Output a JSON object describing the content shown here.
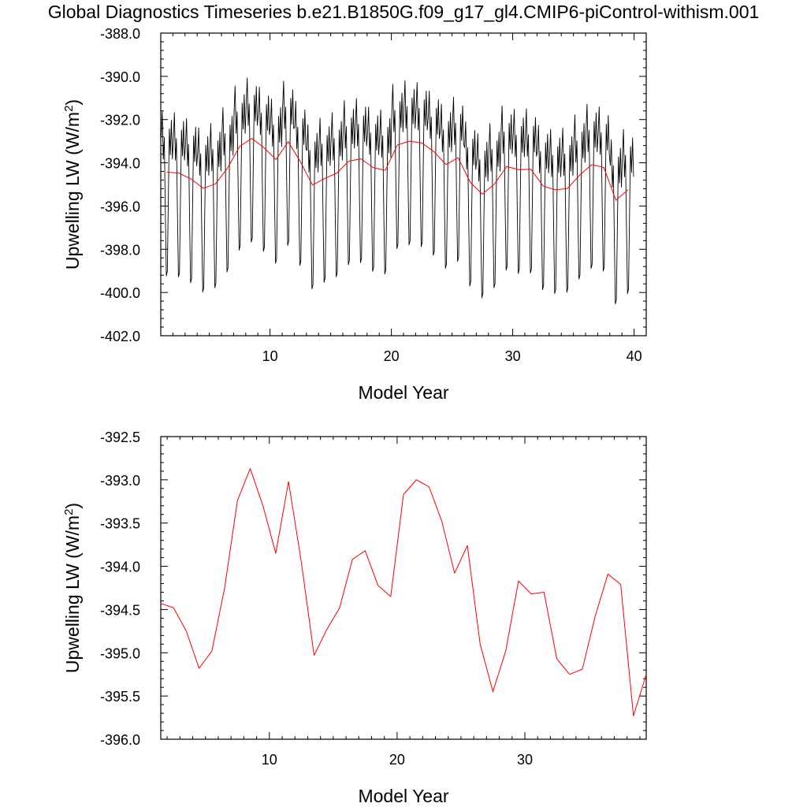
{
  "title": "Global Diagnostics Timeseries b.e21.B1850G.f09_g17_gl4.CMIP6-piControl-withism.001",
  "colors": {
    "monthly": "#000000",
    "annual": "#ff0000"
  },
  "chart_data": [
    {
      "type": "line",
      "xlabel": "Model Year",
      "ylabel": "Upwelling LW (W/m2)",
      "xlim": [
        1,
        41
      ],
      "ylim": [
        -402.0,
        -388.0
      ],
      "xticks": [
        10,
        20,
        30,
        40
      ],
      "yticks": [
        -402.0,
        -400.0,
        -398.0,
        -396.0,
        -394.0,
        -392.0,
        -390.0,
        -388.0
      ],
      "ytick_labels": [
        "-402.0",
        "-400.0",
        "-398.0",
        "-396.0",
        "-394.0",
        "-392.0",
        "-390.0",
        "-388.0"
      ],
      "grid": false,
      "series": [
        {
          "style": "monthly",
          "x_start": 1.04,
          "x_step": 0.0833333,
          "monthly_cycle": [
            1.6,
            2.8,
            0.6,
            1.6,
            -1.8,
            -4.8,
            -4.6,
            -1.2,
            2.0,
            0.8,
            2.4,
            0.6
          ],
          "annual_values": [
            -394.43,
            -394.48,
            -394.75,
            -395.18,
            -394.98,
            -394.25,
            -393.24,
            -392.87,
            -393.3,
            -393.85,
            -393.02,
            -393.95,
            -395.03,
            -394.73,
            -394.48,
            -393.92,
            -393.82,
            -394.22,
            -394.35,
            -393.17,
            -393.0,
            -393.08,
            -393.48,
            -394.08,
            -393.76,
            -394.9,
            -395.45,
            -394.98,
            -394.17,
            -394.32,
            -394.3,
            -395.07,
            -395.25,
            -395.19,
            -394.58,
            -394.09,
            -394.21,
            -395.73,
            -395.25
          ]
        },
        {
          "style": "annual",
          "x": [
            1.5,
            2.5,
            3.5,
            4.5,
            5.5,
            6.5,
            7.5,
            8.5,
            9.5,
            10.5,
            11.5,
            12.5,
            13.5,
            14.5,
            15.5,
            16.5,
            17.5,
            18.5,
            19.5,
            20.5,
            21.5,
            22.5,
            23.5,
            24.5,
            25.5,
            26.5,
            27.5,
            28.5,
            29.5,
            30.5,
            31.5,
            32.5,
            33.5,
            34.5,
            35.5,
            36.5,
            37.5,
            38.5,
            39.5
          ],
          "values": [
            -394.43,
            -394.48,
            -394.75,
            -395.18,
            -394.98,
            -394.25,
            -393.24,
            -392.87,
            -393.3,
            -393.85,
            -393.02,
            -393.95,
            -395.03,
            -394.73,
            -394.48,
            -393.92,
            -393.82,
            -394.22,
            -394.35,
            -393.17,
            -393.0,
            -393.08,
            -393.48,
            -394.08,
            -393.76,
            -394.9,
            -395.45,
            -394.98,
            -394.17,
            -394.32,
            -394.3,
            -395.07,
            -395.25,
            -395.19,
            -394.58,
            -394.09,
            -394.21,
            -395.73,
            -395.25
          ]
        }
      ]
    },
    {
      "type": "line",
      "xlabel": "Model Year",
      "ylabel": "Upwelling LW (W/m2)",
      "xlim": [
        1.5,
        39.5
      ],
      "ylim": [
        -396.0,
        -392.5
      ],
      "xticks": [
        10,
        20,
        30
      ],
      "yticks": [
        -396.0,
        -395.5,
        -395.0,
        -394.5,
        -394.0,
        -393.5,
        -393.0,
        -392.5
      ],
      "ytick_labels": [
        "-396.0",
        "-395.5",
        "-395.0",
        "-394.5",
        "-394.0",
        "-393.5",
        "-393.0",
        "-392.5"
      ],
      "grid": false,
      "series": [
        {
          "style": "annual",
          "x": [
            1.5,
            2.5,
            3.5,
            4.5,
            5.5,
            6.5,
            7.5,
            8.5,
            9.5,
            10.5,
            11.5,
            12.5,
            13.5,
            14.5,
            15.5,
            16.5,
            17.5,
            18.5,
            19.5,
            20.5,
            21.5,
            22.5,
            23.5,
            24.5,
            25.5,
            26.5,
            27.5,
            28.5,
            29.5,
            30.5,
            31.5,
            32.5,
            33.5,
            34.5,
            35.5,
            36.5,
            37.5,
            38.5,
            39.5
          ],
          "values": [
            -394.43,
            -394.48,
            -394.75,
            -395.18,
            -394.98,
            -394.25,
            -393.24,
            -392.87,
            -393.3,
            -393.85,
            -393.02,
            -393.95,
            -395.03,
            -394.73,
            -394.48,
            -393.92,
            -393.82,
            -394.22,
            -394.35,
            -393.17,
            -393.0,
            -393.08,
            -393.48,
            -394.08,
            -393.76,
            -394.9,
            -395.45,
            -394.98,
            -394.17,
            -394.32,
            -394.3,
            -395.07,
            -395.25,
            -395.19,
            -394.58,
            -394.09,
            -394.21,
            -395.73,
            -395.25
          ]
        }
      ]
    }
  ]
}
